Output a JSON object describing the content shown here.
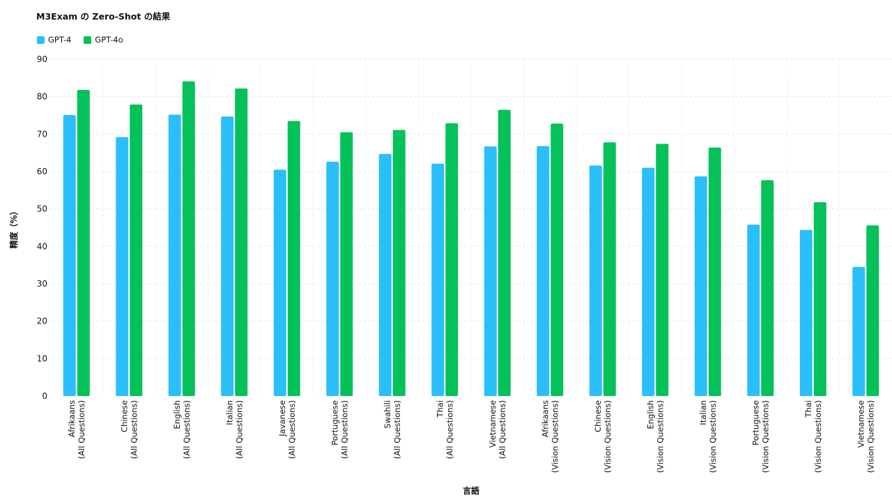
{
  "chart_data": {
    "type": "bar",
    "title": "M3Exam の Zero-Shot の結果",
    "xlabel": "言語",
    "ylabel": "精度（%）",
    "ylim": [
      0,
      90
    ],
    "yticks": [
      0,
      10,
      20,
      30,
      40,
      50,
      60,
      70,
      80,
      90
    ],
    "grid": true,
    "legend_position": "top-left",
    "categories": [
      [
        "Afrikaans",
        "(All Questions)"
      ],
      [
        "Chinese",
        "(All Questions)"
      ],
      [
        "English",
        "(All Questions)"
      ],
      [
        "Italian",
        "(All Questions)"
      ],
      [
        "Javanese",
        "(All Questions)"
      ],
      [
        "Portuguese",
        "(All Questions)"
      ],
      [
        "Swahili",
        "(All Questions)"
      ],
      [
        "Thai",
        "(All Questions)"
      ],
      [
        "Vietnamese",
        "(All Questions)"
      ],
      [
        "Afrikaans",
        "(Vision Questions)"
      ],
      [
        "Chinese",
        "(Vision Questions)"
      ],
      [
        "English",
        "(Vision Questions)"
      ],
      [
        "Italian",
        "(Vision Questions)"
      ],
      [
        "Portuguese",
        "(Vision Questions)"
      ],
      [
        "Thai",
        "(Vision Questions)"
      ],
      [
        "Vietnamese",
        "(Vision Questions)"
      ]
    ],
    "series": [
      {
        "name": "GPT-4",
        "color": "#2ABEFA",
        "values": [
          75.1,
          69.2,
          75.2,
          74.7,
          60.5,
          62.6,
          64.7,
          62.1,
          66.7,
          66.8,
          61.6,
          61.0,
          58.7,
          45.8,
          44.4,
          34.5
        ]
      },
      {
        "name": "GPT-4o",
        "color": "#05C159",
        "values": [
          81.8,
          77.9,
          84.1,
          82.2,
          73.5,
          70.5,
          71.1,
          72.9,
          76.5,
          72.8,
          67.8,
          67.4,
          66.4,
          57.7,
          51.8,
          45.6
        ]
      }
    ]
  }
}
